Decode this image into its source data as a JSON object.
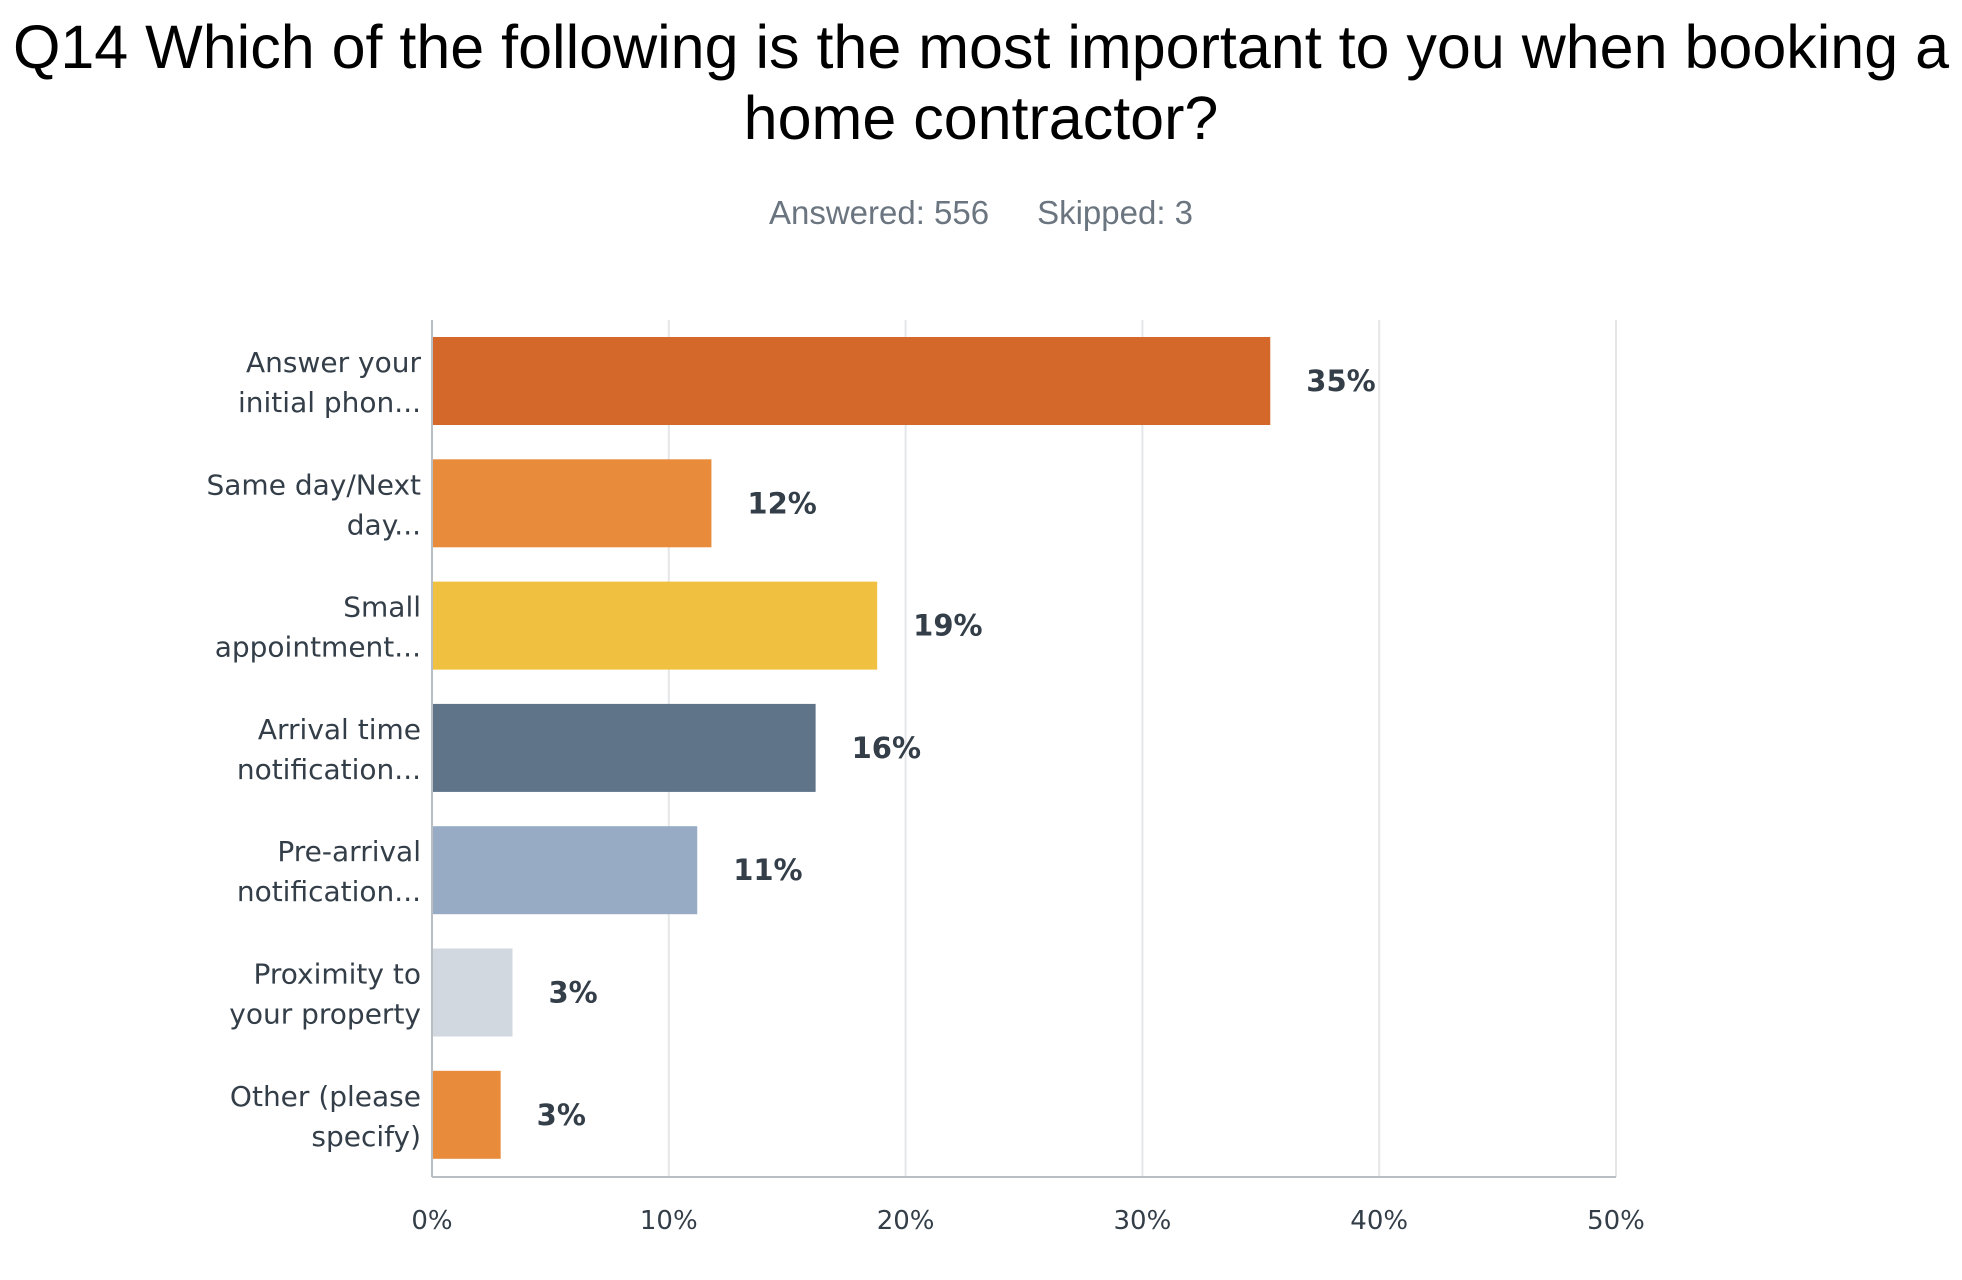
{
  "header": {
    "title": "Q14 Which of the following is the most important to you when booking a home contractor?",
    "answered": "Answered: 556",
    "skipped": "Skipped: 3"
  },
  "chart_data": {
    "type": "bar",
    "orientation": "horizontal",
    "title": "Q14 Which of the following is the most important to you when booking a home contractor?",
    "categories": [
      [
        "Answer your",
        "initial phon..."
      ],
      [
        "Same day/Next",
        "day..."
      ],
      [
        "Small",
        "appointment..."
      ],
      [
        "Arrival time",
        "notification..."
      ],
      [
        "Pre-arrival",
        "notification..."
      ],
      [
        "Proximity to",
        "your property"
      ],
      [
        "Other (please",
        "specify)"
      ]
    ],
    "values": [
      35.4,
      11.8,
      18.8,
      16.2,
      11.2,
      3.4,
      2.9
    ],
    "value_labels": [
      "35%",
      "12%",
      "19%",
      "16%",
      "11%",
      "3%",
      "3%"
    ],
    "colors": [
      "#d4672a",
      "#e88c3c",
      "#f0c040",
      "#5f7389",
      "#98abc4",
      "#d2d8e0",
      "#e88c3c"
    ],
    "xlim": [
      0,
      50
    ],
    "ticks": [
      0,
      10,
      20,
      30,
      40,
      50
    ],
    "tick_labels": [
      "0%",
      "10%",
      "20%",
      "30%",
      "40%",
      "50%"
    ],
    "grid": true,
    "xlabel": "",
    "ylabel": ""
  }
}
